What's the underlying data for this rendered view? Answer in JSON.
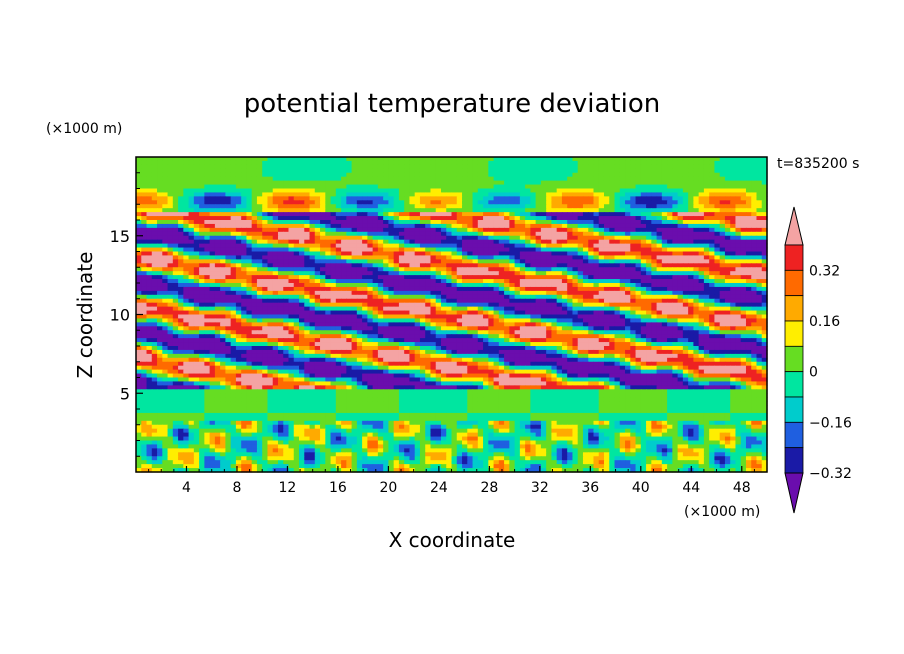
{
  "chart_data": {
    "type": "heatmap",
    "title": "potential temperature deviation",
    "time_label": "t=835200 s",
    "xlabel": "X coordinate",
    "ylabel": "Z coordinate",
    "x_unit": "(×1000 m)",
    "y_unit": "(×1000 m)",
    "xlim": [
      0,
      50
    ],
    "ylim": [
      0,
      20
    ],
    "x_ticks": [
      "4",
      "8",
      "12",
      "16",
      "20",
      "24",
      "28",
      "32",
      "36",
      "40",
      "44",
      "48"
    ],
    "y_ticks": [
      "5",
      "10",
      "15"
    ],
    "colorbar": {
      "labels": [
        "0.32",
        "0.16",
        "0",
        "−0.16",
        "−0.32"
      ],
      "levels": [
        -0.4,
        -0.32,
        -0.24,
        -0.16,
        -0.08,
        0,
        0.08,
        0.16,
        0.24,
        0.32,
        0.4
      ],
      "colors": [
        "#6a0dad",
        "#1a1aa6",
        "#1f5fe0",
        "#00cccc",
        "#00e6a0",
        "#66dd22",
        "#ffee00",
        "#ffaa00",
        "#ff6a00",
        "#ee2222",
        "#f4a3a3"
      ]
    }
  }
}
